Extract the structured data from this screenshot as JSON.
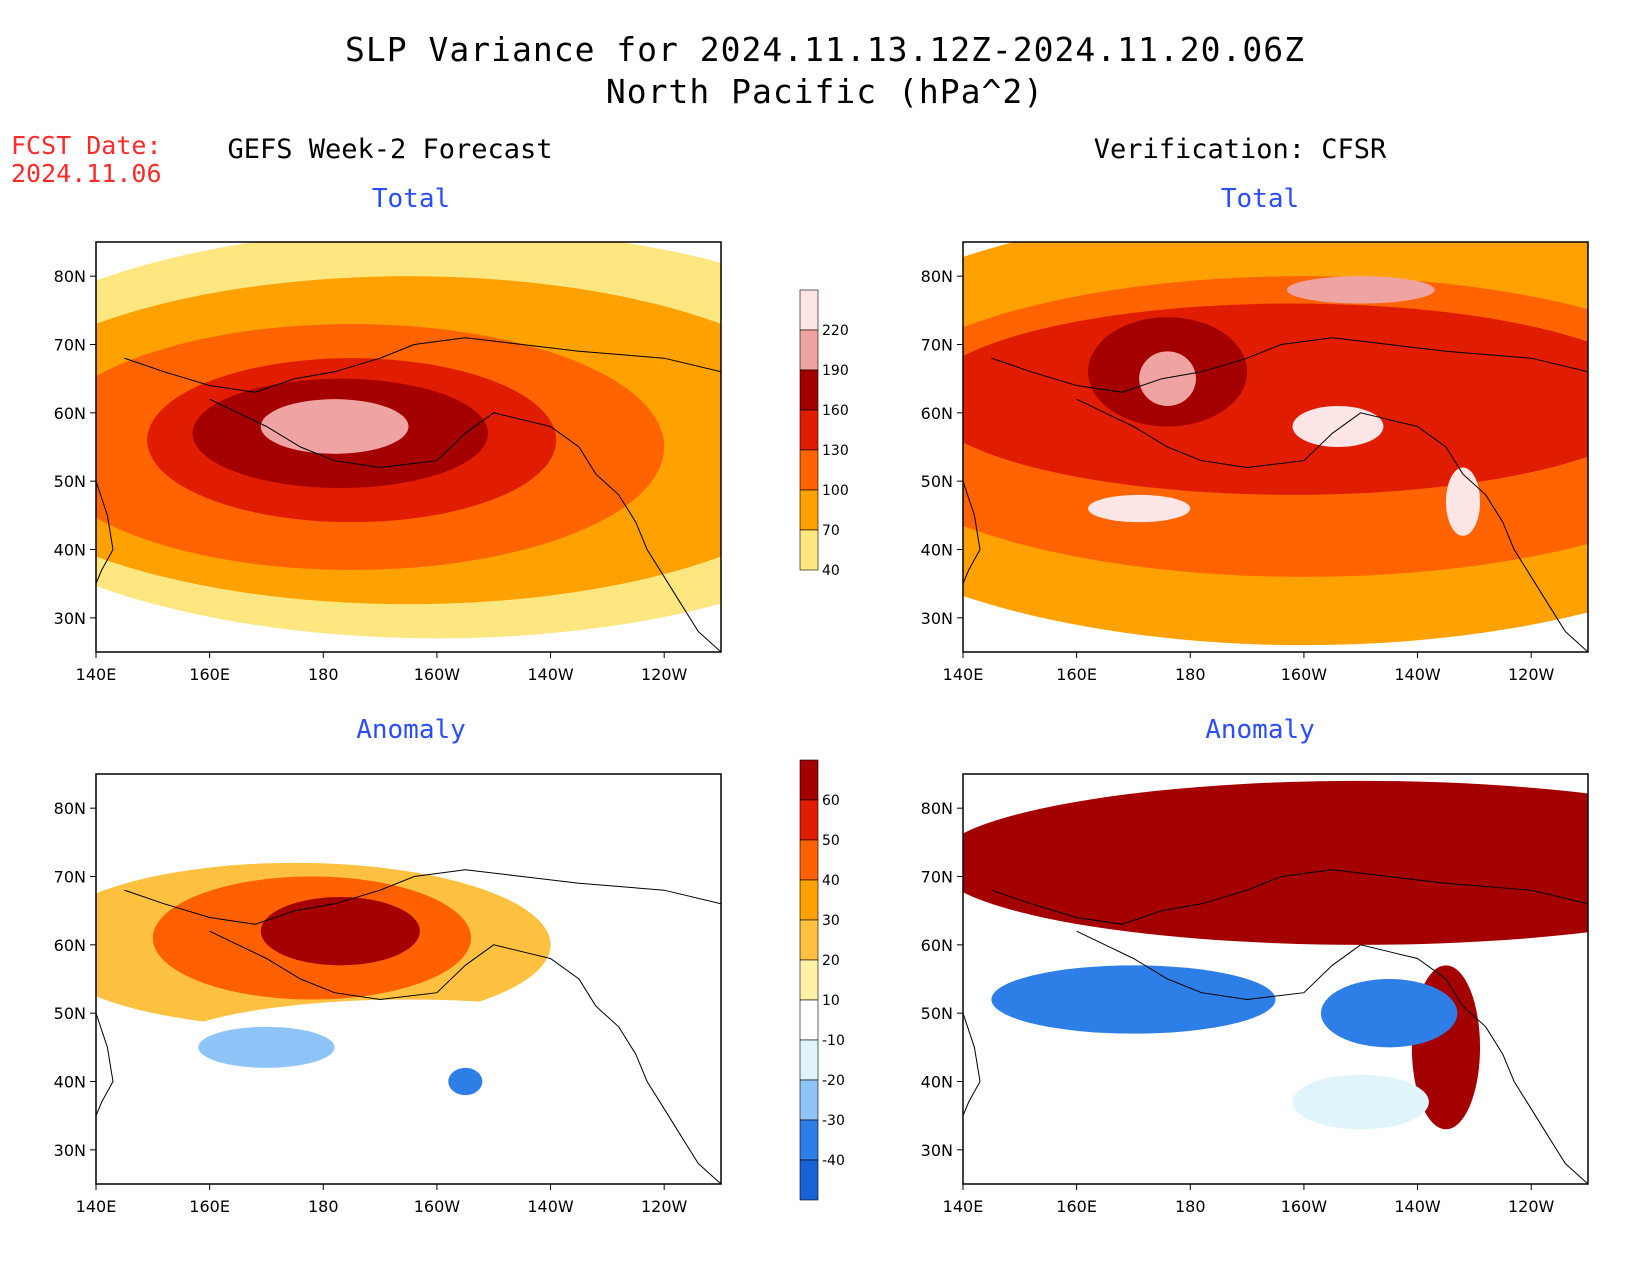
{
  "header": {
    "title_line1": "SLP Variance for 2024.11.13.12Z-2024.11.20.06Z",
    "title_line2": "North Pacific (hPa^2)",
    "fcst_label": "FCST Date:",
    "fcst_date": "2024.11.06"
  },
  "columns": {
    "left": "GEFS Week-2 Forecast",
    "right": "Verification: CFSR"
  },
  "panel_titles": {
    "total": "Total",
    "anomaly": "Anomaly"
  },
  "chart_data": [
    {
      "type": "heatmap",
      "panel": "GEFS Week-2 Forecast - Total",
      "title": "Total",
      "x_ticks": [
        "140E",
        "160E",
        "180",
        "160W",
        "140W",
        "120W"
      ],
      "y_ticks": [
        "30N",
        "40N",
        "50N",
        "60N",
        "70N",
        "80N"
      ],
      "colorbar": "total",
      "features": [
        {
          "lon": 185,
          "lat": 56,
          "r_lon": 36,
          "r_lat": 12,
          "value": 130
        },
        {
          "lon": 183,
          "lat": 57,
          "r_lon": 26,
          "r_lat": 8,
          "value": 160
        },
        {
          "lon": 182,
          "lat": 58,
          "r_lon": 13,
          "r_lat": 4,
          "value": 190
        },
        {
          "lon": 185,
          "lat": 55,
          "r_lon": 55,
          "r_lat": 18,
          "value": 100
        },
        {
          "lon": 195,
          "lat": 56,
          "r_lon": 78,
          "r_lat": 24,
          "value": 70
        },
        {
          "lon": 200,
          "lat": 57,
          "r_lon": 90,
          "r_lat": 30,
          "value": 40
        }
      ]
    },
    {
      "type": "heatmap",
      "panel": "Verification: CFSR - Total",
      "title": "Total",
      "x_ticks": [
        "140E",
        "160E",
        "180",
        "160W",
        "140W",
        "120W"
      ],
      "y_ticks": [
        "30N",
        "40N",
        "50N",
        "60N",
        "70N",
        "80N"
      ],
      "colorbar": "total",
      "features": [
        {
          "lon": 200,
          "lat": 58,
          "r_lon": 95,
          "r_lat": 32,
          "value": 70
        },
        {
          "lon": 200,
          "lat": 58,
          "r_lon": 80,
          "r_lat": 22,
          "value": 100
        },
        {
          "lon": 198,
          "lat": 62,
          "r_lon": 65,
          "r_lat": 14,
          "value": 130
        },
        {
          "lon": 176,
          "lat": 66,
          "r_lon": 14,
          "r_lat": 8,
          "value": 160
        },
        {
          "lon": 176,
          "lat": 65,
          "r_lon": 5,
          "r_lat": 4,
          "value": 190
        },
        {
          "lon": 206,
          "lat": 58,
          "r_lon": 8,
          "r_lat": 3,
          "value": 220
        },
        {
          "lon": 171,
          "lat": 46,
          "r_lon": 9,
          "r_lat": 2,
          "value": 220
        },
        {
          "lon": 228,
          "lat": 47,
          "r_lon": 3,
          "r_lat": 5,
          "value": 220
        },
        {
          "lon": 210,
          "lat": 78,
          "r_lon": 13,
          "r_lat": 2,
          "value": 190
        }
      ]
    },
    {
      "type": "heatmap",
      "panel": "GEFS Week-2 Forecast - Anomaly",
      "title": "Anomaly",
      "x_ticks": [
        "140E",
        "160E",
        "180",
        "160W",
        "140W",
        "120W"
      ],
      "y_ticks": [
        "30N",
        "40N",
        "50N",
        "60N",
        "70N",
        "80N"
      ],
      "colorbar": "anomaly",
      "features": [
        {
          "lon": 183,
          "lat": 62,
          "r_lon": 14,
          "r_lat": 5,
          "value": 60
        },
        {
          "lon": 178,
          "lat": 61,
          "r_lon": 28,
          "r_lat": 9,
          "value": 40
        },
        {
          "lon": 175,
          "lat": 60,
          "r_lon": 45,
          "r_lat": 12,
          "value": 20
        },
        {
          "lon": 170,
          "lat": 45,
          "r_lon": 12,
          "r_lat": 3,
          "value": -30
        },
        {
          "lon": 205,
          "lat": 40,
          "r_lon": 3,
          "r_lat": 2,
          "value": -40
        },
        {
          "lon": 195,
          "lat": 44,
          "r_lon": 45,
          "r_lat": 8,
          "value": -10
        }
      ]
    },
    {
      "type": "heatmap",
      "panel": "Verification: CFSR - Anomaly",
      "title": "Anomaly",
      "x_ticks": [
        "140E",
        "160E",
        "180",
        "160W",
        "140W",
        "120W"
      ],
      "y_ticks": [
        "30N",
        "40N",
        "50N",
        "60N",
        "70N",
        "80N"
      ],
      "colorbar": "anomaly",
      "features": [
        {
          "lon": 210,
          "lat": 72,
          "r_lon": 75,
          "r_lat": 12,
          "value": 60
        },
        {
          "lon": 170,
          "lat": 52,
          "r_lon": 25,
          "r_lat": 5,
          "value": -40
        },
        {
          "lon": 215,
          "lat": 50,
          "r_lon": 12,
          "r_lat": 5,
          "value": -40
        },
        {
          "lon": 225,
          "lat": 45,
          "r_lon": 6,
          "r_lat": 12,
          "value": 60
        },
        {
          "lon": 210,
          "lat": 37,
          "r_lon": 12,
          "r_lat": 4,
          "value": -20
        }
      ]
    }
  ],
  "colorbars": {
    "total": {
      "levels": [
        "40",
        "70",
        "100",
        "130",
        "160",
        "190",
        "220"
      ],
      "colors": [
        "#fee680",
        "#ffa100",
        "#ff6400",
        "#e11d00",
        "#a40000",
        "#f0a3a3",
        "#ffe6e6"
      ]
    },
    "anomaly": {
      "levels": [
        "-40",
        "-30",
        "-20",
        "-10",
        "10",
        "20",
        "30",
        "40",
        "50",
        "60"
      ],
      "colors": [
        "#1962d6",
        "#2e7ee8",
        "#8ec4f7",
        "#dff5fb",
        "#ffffff",
        "#fff2a8",
        "#ffc13f",
        "#ffa100",
        "#ff6000",
        "#e11d00",
        "#a40000"
      ]
    }
  }
}
